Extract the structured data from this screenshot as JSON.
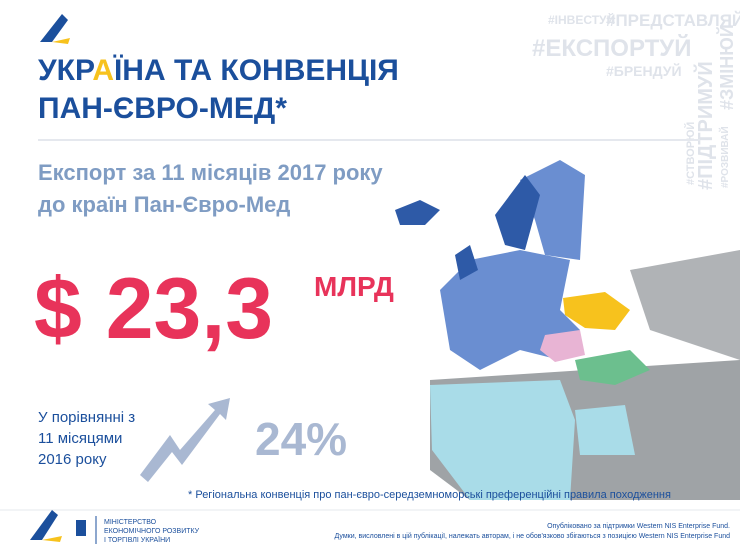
{
  "header": {
    "title_line1": [
      "УКР",
      "А",
      "ЇНА ТА КОНВЕНЦІЯ"
    ],
    "title_line2": "ПАН-ЄВРО-МЕД*"
  },
  "hashtags": {
    "invest": "#ІНВЕСТУЙ",
    "represent": "#ПРЕДСТАВЛЯЙ",
    "export": "#ЕКСПОРТУЙ",
    "brand": "#БРЕНДУЙ",
    "support": "#ПІДТРИМУЙ",
    "change": "#ЗМІНЮЙ",
    "create": "#СТВОРЮЙ",
    "develop": "#РОЗВИВАЙ"
  },
  "subtitle": [
    "Експорт за 11 місяців 2017 року",
    "до країн Пан-Євро-Мед"
  ],
  "amount": {
    "value": "$ 23,3",
    "unit": "МЛРД"
  },
  "comparison": {
    "lines": [
      "У порівнянні з",
      "11 місяцями",
      "2016 року"
    ],
    "growth": "24%"
  },
  "footnote": "* Регіональна конвенція про пан-євро-середземноморські преференційні правила походження",
  "footer": {
    "ministry": [
      "МІНІСТЕРСТВО",
      "ЕКОНОМІЧНОГО РОЗВИТКУ",
      "І ТОРГІВЛІ УКРАЇНИ"
    ],
    "credits": [
      "Опубліковано за підтримки Western NIS Enterprise Fund.",
      "Думки, висловлені в цій публікації, належать авторам, і не обов'язково збігаються з позицією Western NIS Enterprise Fund"
    ]
  }
}
